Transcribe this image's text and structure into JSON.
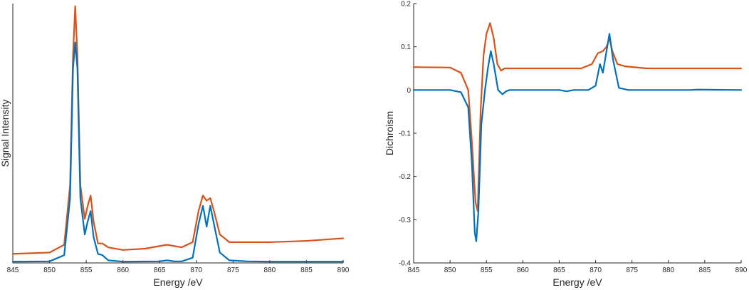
{
  "chart_data": [
    {
      "type": "line",
      "xlabel": "Energy /eV",
      "ylabel": "Signal Intensity",
      "xlim": [
        845,
        890
      ],
      "ylim": [
        0,
        1
      ],
      "x_ticks": [
        845,
        850,
        855,
        860,
        865,
        870,
        875,
        880,
        885,
        890
      ],
      "x_tick_labels": [
        "845",
        "850",
        "855",
        "860",
        "865",
        "870",
        "875",
        "880",
        "885",
        "890"
      ],
      "y_ticks": [],
      "y_tick_labels": [],
      "grid": false,
      "series": [
        {
          "color": "#D95319",
          "x": [
            845,
            850,
            852,
            852.8,
            853.2,
            853.5,
            853.8,
            854.2,
            854.8,
            855.2,
            855.6,
            856.0,
            856.6,
            857.2,
            858,
            860,
            863,
            866,
            868,
            869.5,
            870.3,
            870.9,
            871.4,
            871.9,
            872.4,
            873.2,
            874.5,
            877,
            880,
            885,
            890
          ],
          "values": [
            0.035,
            0.04,
            0.07,
            0.3,
            0.8,
            0.99,
            0.8,
            0.3,
            0.17,
            0.22,
            0.26,
            0.16,
            0.075,
            0.075,
            0.06,
            0.05,
            0.055,
            0.07,
            0.06,
            0.08,
            0.2,
            0.26,
            0.24,
            0.25,
            0.2,
            0.11,
            0.08,
            0.08,
            0.08,
            0.085,
            0.095
          ]
        },
        {
          "color": "#0072BD",
          "x": [
            845,
            850,
            852,
            852.8,
            853.2,
            853.5,
            853.8,
            854.2,
            854.8,
            855.2,
            855.6,
            856.0,
            856.6,
            857.2,
            858,
            860,
            865,
            866,
            867,
            868,
            869.5,
            870.3,
            870.9,
            871.4,
            871.9,
            872.4,
            873.2,
            874.5,
            877,
            880,
            885,
            890
          ],
          "values": [
            0.005,
            0.006,
            0.03,
            0.25,
            0.75,
            0.85,
            0.75,
            0.25,
            0.11,
            0.16,
            0.2,
            0.1,
            0.035,
            0.03,
            0.01,
            0.005,
            0.006,
            0.01,
            0.006,
            0.006,
            0.02,
            0.15,
            0.22,
            0.14,
            0.22,
            0.15,
            0.04,
            0.01,
            0.006,
            0.005,
            0.005,
            0.005
          ]
        }
      ]
    },
    {
      "type": "line",
      "xlabel": "Energy /eV",
      "ylabel": "Dichroism",
      "xlim": [
        845,
        890
      ],
      "ylim": [
        -0.4,
        0.2
      ],
      "x_ticks": [
        845,
        850,
        855,
        860,
        865,
        870,
        875,
        880,
        885,
        890
      ],
      "x_tick_labels": [
        "845",
        "850",
        "855",
        "860",
        "865",
        "870",
        "875",
        "880",
        "885",
        "890"
      ],
      "y_ticks": [
        -0.4,
        -0.3,
        -0.2,
        -0.1,
        0,
        0.1,
        0.2
      ],
      "y_tick_labels": [
        "-0.4",
        "-0.3",
        "-0.2",
        "-0.1",
        "0",
        "0.1",
        "0.2"
      ],
      "grid": false,
      "series": [
        {
          "color": "#D95319",
          "x": [
            845,
            850,
            851.5,
            852.5,
            853.0,
            853.5,
            853.8,
            854.2,
            854.6,
            855.0,
            855.5,
            856.0,
            856.5,
            857.0,
            857.5,
            860,
            865,
            868,
            869.5,
            870.3,
            871.0,
            871.5,
            871.9,
            872.3,
            873.0,
            874,
            877,
            880,
            885,
            890
          ],
          "values": [
            0.053,
            0.052,
            0.04,
            0.0,
            -0.12,
            -0.26,
            -0.28,
            -0.05,
            0.08,
            0.13,
            0.155,
            0.12,
            0.06,
            0.045,
            0.05,
            0.05,
            0.05,
            0.05,
            0.06,
            0.085,
            0.09,
            0.1,
            0.12,
            0.09,
            0.06,
            0.055,
            0.05,
            0.05,
            0.05,
            0.05
          ]
        },
        {
          "color": "#0072BD",
          "x": [
            845,
            850,
            851.5,
            852.5,
            853.0,
            853.4,
            853.6,
            853.9,
            854.3,
            854.8,
            855.2,
            855.6,
            856.0,
            856.6,
            857.2,
            857.7,
            858.2,
            860,
            865,
            866,
            867,
            869,
            870.0,
            870.6,
            871.0,
            871.4,
            871.9,
            872.4,
            873.2,
            874.5,
            877,
            883,
            884,
            890
          ],
          "values": [
            0.0,
            0.0,
            -0.005,
            -0.04,
            -0.17,
            -0.33,
            -0.35,
            -0.28,
            -0.08,
            0.0,
            0.05,
            0.09,
            0.06,
            0.0,
            -0.01,
            -0.003,
            0.0,
            0.0,
            0.0,
            -0.003,
            0.0,
            0.0,
            0.01,
            0.06,
            0.04,
            0.08,
            0.13,
            0.07,
            0.005,
            0.0,
            0.0,
            0.0,
            0.001,
            0.0
          ]
        }
      ]
    }
  ]
}
